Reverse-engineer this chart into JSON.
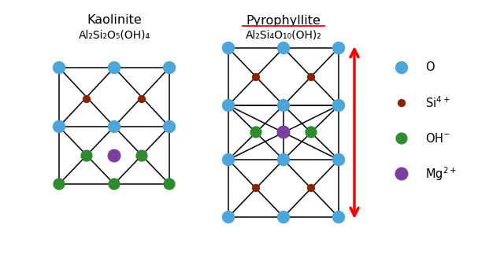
{
  "kaolinite_title": "Kaolinite",
  "kaolinite_formula": "Al₂Si₂O₅(OH)₄",
  "pyrophyllite_title": "Pyrophyllite",
  "pyrophyllite_formula": "Al₂Si₄O₁₀(OH)₂",
  "colors": {
    "O": "#4da6d9",
    "Si": "#8B2200",
    "OH": "#2e8b2e",
    "Mg": "#7B3FA0",
    "bg": "#ffffff"
  },
  "atom_sizes": {
    "O": 140,
    "Si": 55,
    "OH": 120,
    "Mg": 150
  },
  "legend_labels": [
    "O",
    "Si4+",
    "OH-",
    "Mg2+"
  ],
  "legend_atom_types": [
    "O",
    "Si",
    "OH",
    "Mg"
  ]
}
